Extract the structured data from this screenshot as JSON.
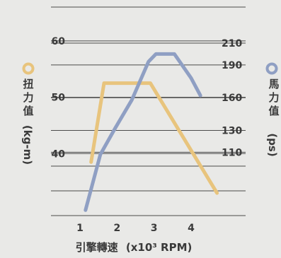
{
  "chart_data": {
    "type": "line",
    "title": "",
    "xlabel": "引擎轉速",
    "xlabel_unit": "(x10³ RPM)",
    "x_ticks": [
      1,
      2,
      3,
      4
    ],
    "xlim": [
      1,
      4
    ],
    "y_left": {
      "label": "扭力值",
      "unit": "(kg-m)",
      "ticks": [
        40,
        50,
        60
      ],
      "range": [
        29,
        66
      ]
    },
    "y_right": {
      "label": "馬力值",
      "unit": "(ps)",
      "ticks": [
        110,
        130,
        160,
        190,
        210
      ],
      "range": [
        52,
        243
      ]
    },
    "series": [
      {
        "name": "扭力值",
        "axis": "left",
        "color": "#e8c47d",
        "points": [
          [
            1.3,
            38.5
          ],
          [
            1.65,
            52.5
          ],
          [
            2.9,
            52.5
          ],
          [
            4.7,
            33.0
          ]
        ]
      },
      {
        "name": "馬力值",
        "axis": "right",
        "color": "#8f9fc3",
        "points": [
          [
            1.15,
            57
          ],
          [
            1.55,
            108
          ],
          [
            1.95,
            132
          ],
          [
            2.4,
            158
          ],
          [
            2.85,
            193
          ],
          [
            3.05,
            200
          ],
          [
            3.55,
            200
          ],
          [
            4.0,
            178
          ],
          [
            4.25,
            162
          ]
        ]
      }
    ],
    "legend_markers": [
      {
        "series": "扭力值",
        "position": "left",
        "color": "#e8c47d"
      },
      {
        "series": "馬力值",
        "position": "right",
        "color": "#8f9fc3"
      }
    ],
    "grid": true
  }
}
